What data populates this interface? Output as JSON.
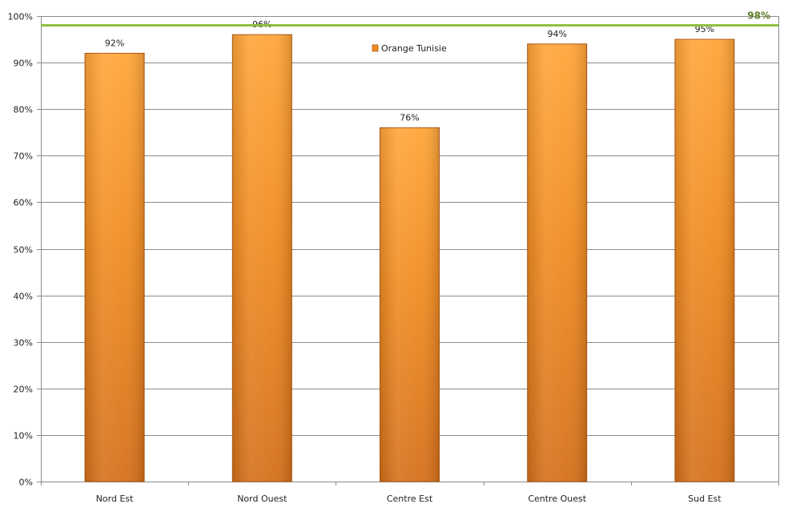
{
  "chart_data": {
    "type": "bar",
    "categories": [
      "Nord Est",
      "Nord Ouest",
      "Centre Est",
      "Centre Ouest",
      "Sud Est"
    ],
    "series": [
      {
        "name": "Orange Tunisie",
        "values": [
          92,
          96,
          76,
          94,
          95
        ],
        "labels": [
          "92%",
          "96%",
          "76%",
          "94%",
          "95%"
        ]
      }
    ],
    "target": {
      "value": 98,
      "label": "98%"
    },
    "ylim": [
      0,
      100
    ],
    "yticks": [
      0,
      10,
      20,
      30,
      40,
      50,
      60,
      70,
      80,
      90,
      100
    ],
    "ytick_labels": [
      "0%",
      "10%",
      "20%",
      "30%",
      "40%",
      "50%",
      "60%",
      "70%",
      "80%",
      "90%",
      "100%"
    ],
    "grid": true,
    "legend_position": "top-center",
    "colors": {
      "bar_light": "#ffa53a",
      "bar_mid": "#f18c22",
      "bar_dark": "#d5701a",
      "bar_edge": "#b05a12",
      "target_line": "#8bbf3f",
      "target_label": "#5f7f2a",
      "grid": "#8c8c8c",
      "axis": "#8c8c8c"
    }
  }
}
